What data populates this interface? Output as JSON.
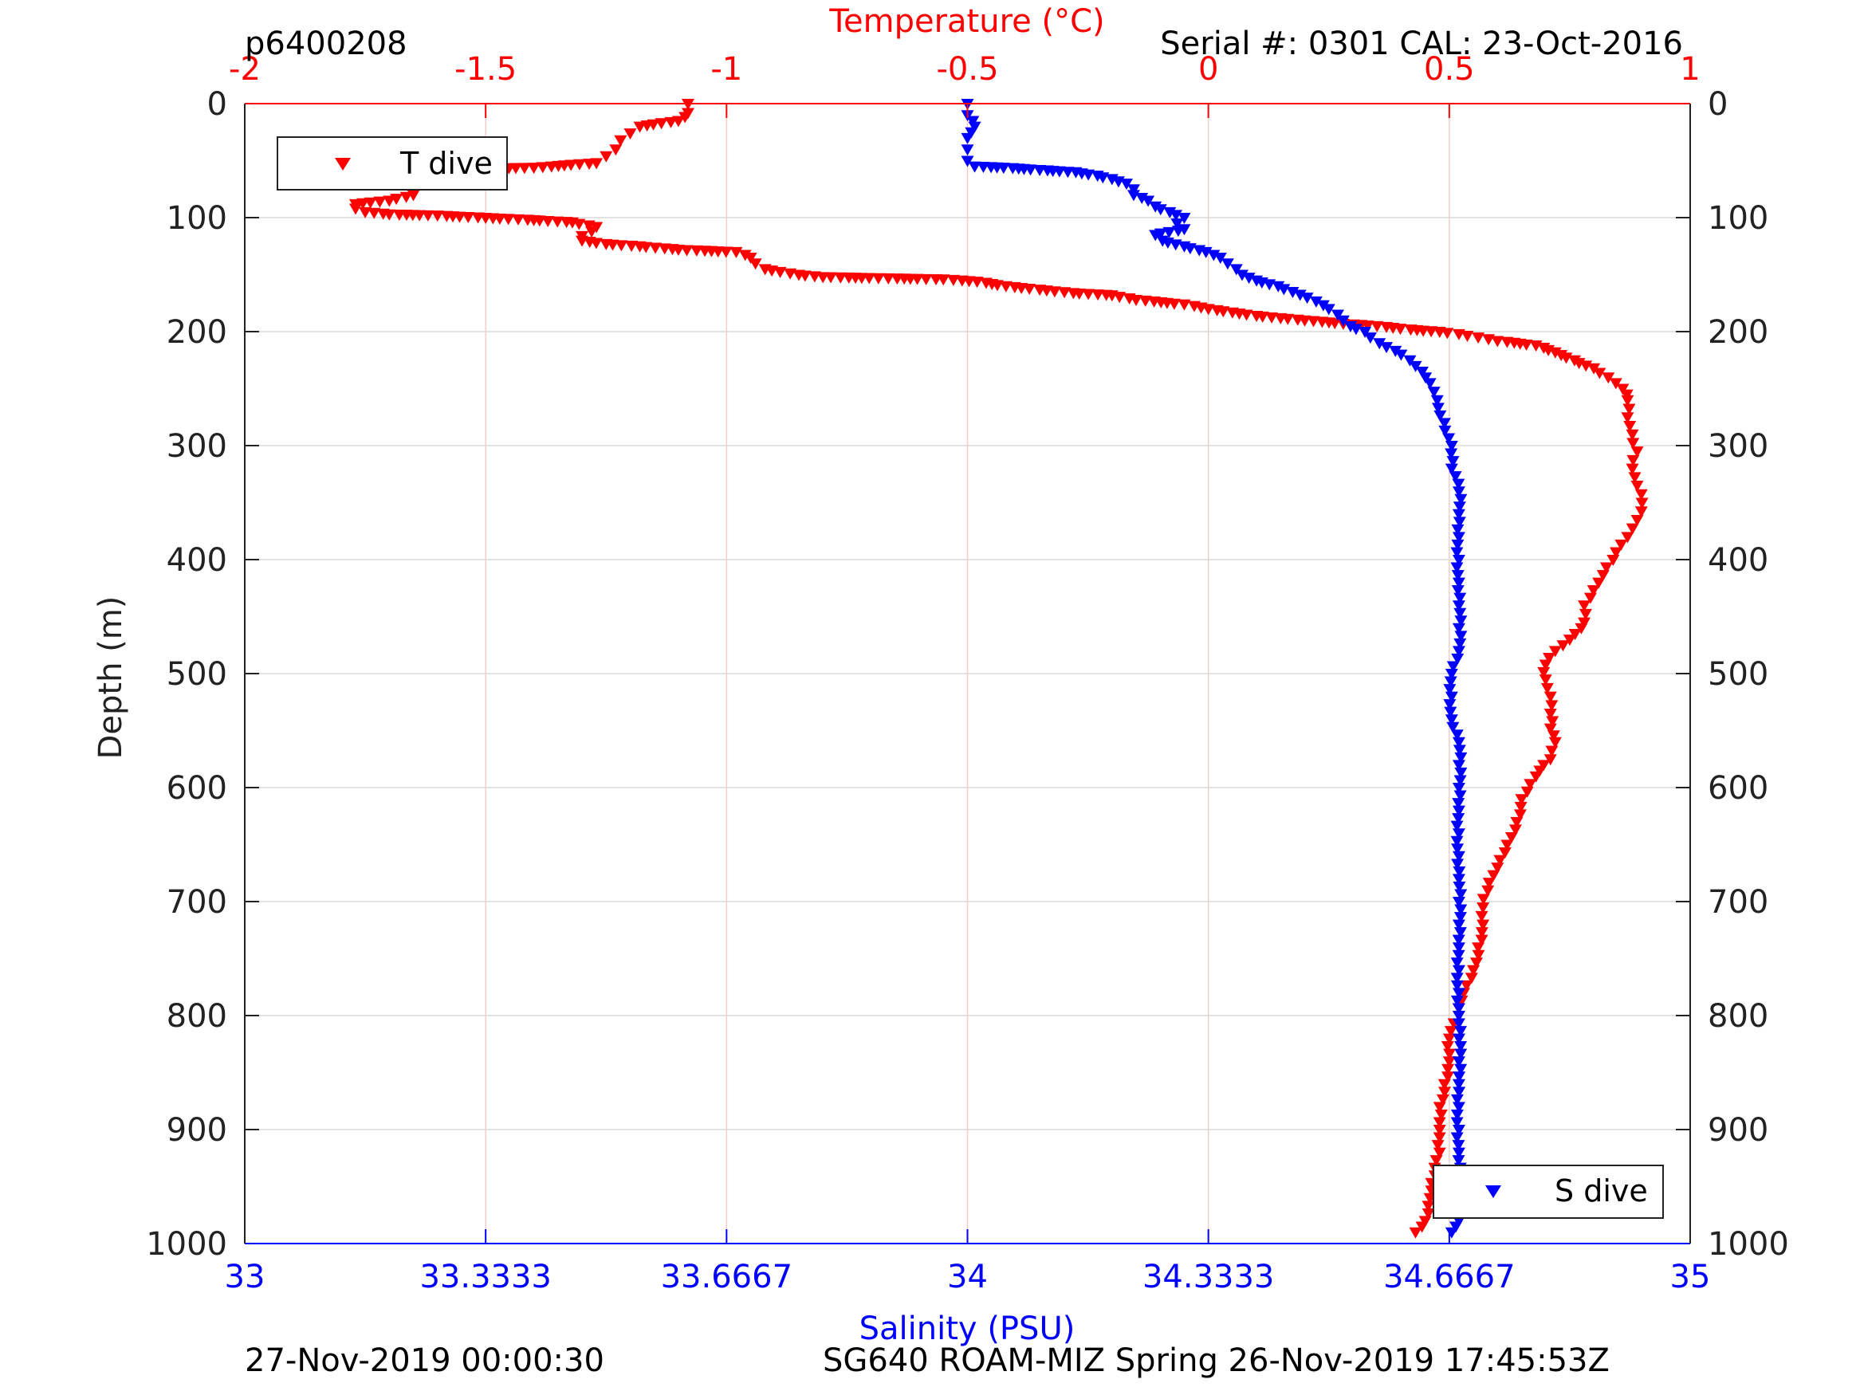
{
  "page": {
    "top_left_id": "p6400208",
    "top_right_info": "Serial #: 0301  CAL: 23-Oct-2016",
    "bottom_left_timestamp": "27-Nov-2019 00:00:30",
    "bottom_right_mission": "SG640 ROAM-MIZ Spring 26-Nov-2019 17:45:53Z"
  },
  "colors": {
    "temperature": "#ff0000",
    "salinity": "#0000ff",
    "axis": "#000000"
  },
  "chart_data": {
    "type": "scatter",
    "ylabel": "Depth (m)",
    "y_axis_reversed": true,
    "ylim": [
      0,
      1000
    ],
    "y_ticks": [
      "0",
      "100",
      "200",
      "300",
      "400",
      "500",
      "600",
      "700",
      "800",
      "900",
      "1000"
    ],
    "grid": true,
    "x_top": {
      "label": "Temperature (°C)",
      "xlim": [
        -2,
        1
      ],
      "ticks": [
        "-2",
        "-1.5",
        "-1",
        "-0.5",
        "0",
        "0.5",
        "1"
      ]
    },
    "x_bottom": {
      "label": "Salinity (PSU)",
      "xlim": [
        33,
        35
      ],
      "ticks": [
        "33",
        "33.3333",
        "33.6667",
        "34",
        "34.3333",
        "34.6667",
        "35"
      ]
    },
    "series": [
      {
        "name": "T dive",
        "axis": "top",
        "marker": "triangle-down",
        "color": "#ff0000",
        "legend_position": "top-left",
        "points": [
          [
            -1.08,
            0
          ],
          [
            -1.08,
            8
          ],
          [
            -1.1,
            15
          ],
          [
            -1.18,
            20
          ],
          [
            -1.2,
            26
          ],
          [
            -1.22,
            32
          ],
          [
            -1.23,
            40
          ],
          [
            -1.25,
            46
          ],
          [
            -1.27,
            52
          ],
          [
            -1.4,
            56
          ],
          [
            -1.6,
            58
          ],
          [
            -1.65,
            62
          ],
          [
            -1.65,
            68
          ],
          [
            -1.65,
            75
          ],
          [
            -1.65,
            80
          ],
          [
            -1.7,
            85
          ],
          [
            -1.77,
            88
          ],
          [
            -1.77,
            92
          ],
          [
            -1.75,
            95
          ],
          [
            -1.7,
            97
          ],
          [
            -1.6,
            98
          ],
          [
            -1.5,
            100
          ],
          [
            -1.4,
            102
          ],
          [
            -1.32,
            104
          ],
          [
            -1.27,
            108
          ],
          [
            -1.28,
            112
          ],
          [
            -1.3,
            116
          ],
          [
            -1.3,
            120
          ],
          [
            -1.25,
            123
          ],
          [
            -1.18,
            125
          ],
          [
            -1.1,
            128
          ],
          [
            -0.98,
            130
          ],
          [
            -0.95,
            135
          ],
          [
            -0.94,
            140
          ],
          [
            -0.92,
            145
          ],
          [
            -0.85,
            150
          ],
          [
            -0.8,
            152
          ],
          [
            -0.55,
            154
          ],
          [
            -0.48,
            156
          ],
          [
            -0.42,
            160
          ],
          [
            -0.35,
            163
          ],
          [
            -0.28,
            166
          ],
          [
            -0.2,
            168
          ],
          [
            -0.15,
            172
          ],
          [
            -0.05,
            176
          ],
          [
            0.0,
            180
          ],
          [
            0.05,
            183
          ],
          [
            0.1,
            186
          ],
          [
            0.15,
            188
          ],
          [
            0.2,
            190
          ],
          [
            0.28,
            193
          ],
          [
            0.35,
            195
          ],
          [
            0.42,
            198
          ],
          [
            0.48,
            200
          ],
          [
            0.52,
            202
          ],
          [
            0.56,
            205
          ],
          [
            0.6,
            208
          ],
          [
            0.68,
            212
          ],
          [
            0.72,
            218
          ],
          [
            0.76,
            225
          ],
          [
            0.8,
            232
          ],
          [
            0.83,
            240
          ],
          [
            0.86,
            250
          ],
          [
            0.87,
            260
          ],
          [
            0.87,
            275
          ],
          [
            0.88,
            290
          ],
          [
            0.89,
            305
          ],
          [
            0.88,
            320
          ],
          [
            0.89,
            335
          ],
          [
            0.9,
            350
          ],
          [
            0.89,
            365
          ],
          [
            0.87,
            380
          ],
          [
            0.84,
            400
          ],
          [
            0.81,
            420
          ],
          [
            0.78,
            440
          ],
          [
            0.78,
            455
          ],
          [
            0.75,
            470
          ],
          [
            0.72,
            480
          ],
          [
            0.7,
            492
          ],
          [
            0.7,
            505
          ],
          [
            0.71,
            520
          ],
          [
            0.71,
            535
          ],
          [
            0.71,
            548
          ],
          [
            0.72,
            560
          ],
          [
            0.71,
            575
          ],
          [
            0.68,
            590
          ],
          [
            0.65,
            610
          ],
          [
            0.64,
            630
          ],
          [
            0.62,
            650
          ],
          [
            0.6,
            670
          ],
          [
            0.58,
            690
          ],
          [
            0.57,
            705
          ],
          [
            0.57,
            720
          ],
          [
            0.56,
            740
          ],
          [
            0.55,
            760
          ],
          [
            0.53,
            780
          ],
          [
            0.52,
            800
          ],
          [
            0.5,
            820
          ],
          [
            0.5,
            840
          ],
          [
            0.49,
            860
          ],
          [
            0.48,
            880
          ],
          [
            0.48,
            900
          ],
          [
            0.48,
            920
          ],
          [
            0.47,
            940
          ],
          [
            0.46,
            960
          ],
          [
            0.45,
            980
          ],
          [
            0.43,
            990
          ]
        ]
      },
      {
        "name": "S dive",
        "axis": "bottom",
        "marker": "triangle-down",
        "color": "#0000ff",
        "legend_position": "bottom-right",
        "points": [
          [
            34.0,
            0
          ],
          [
            34.0,
            10
          ],
          [
            34.01,
            20
          ],
          [
            34.0,
            30
          ],
          [
            34.0,
            40
          ],
          [
            34.0,
            50
          ],
          [
            34.01,
            55
          ],
          [
            34.05,
            56
          ],
          [
            34.1,
            58
          ],
          [
            34.15,
            60
          ],
          [
            34.18,
            63
          ],
          [
            34.2,
            66
          ],
          [
            34.22,
            70
          ],
          [
            34.23,
            75
          ],
          [
            34.23,
            80
          ],
          [
            34.25,
            85
          ],
          [
            34.26,
            90
          ],
          [
            34.28,
            95
          ],
          [
            34.3,
            100
          ],
          [
            34.29,
            105
          ],
          [
            34.3,
            110
          ],
          [
            34.26,
            115
          ],
          [
            34.27,
            120
          ],
          [
            34.3,
            125
          ],
          [
            34.33,
            130
          ],
          [
            34.35,
            135
          ],
          [
            34.36,
            140
          ],
          [
            34.38,
            150
          ],
          [
            34.4,
            155
          ],
          [
            34.43,
            160
          ],
          [
            34.45,
            165
          ],
          [
            34.47,
            170
          ],
          [
            34.5,
            180
          ],
          [
            34.52,
            190
          ],
          [
            34.53,
            195
          ],
          [
            34.55,
            200
          ],
          [
            34.57,
            210
          ],
          [
            34.6,
            220
          ],
          [
            34.62,
            230
          ],
          [
            34.64,
            245
          ],
          [
            34.65,
            260
          ],
          [
            34.66,
            280
          ],
          [
            34.67,
            300
          ],
          [
            34.67,
            320
          ],
          [
            34.68,
            340
          ],
          [
            34.68,
            360
          ],
          [
            34.68,
            380
          ],
          [
            34.68,
            400
          ],
          [
            34.68,
            420
          ],
          [
            34.68,
            440
          ],
          [
            34.68,
            460
          ],
          [
            34.68,
            480
          ],
          [
            34.67,
            500
          ],
          [
            34.67,
            520
          ],
          [
            34.67,
            540
          ],
          [
            34.68,
            560
          ],
          [
            34.68,
            580
          ],
          [
            34.68,
            600
          ],
          [
            34.68,
            620
          ],
          [
            34.68,
            640
          ],
          [
            34.68,
            660
          ],
          [
            34.68,
            680
          ],
          [
            34.68,
            700
          ],
          [
            34.68,
            720
          ],
          [
            34.68,
            740
          ],
          [
            34.68,
            760
          ],
          [
            34.68,
            780
          ],
          [
            34.68,
            800
          ],
          [
            34.68,
            820
          ],
          [
            34.68,
            840
          ],
          [
            34.68,
            860
          ],
          [
            34.68,
            880
          ],
          [
            34.68,
            900
          ],
          [
            34.68,
            920
          ],
          [
            34.68,
            940
          ],
          [
            34.68,
            960
          ],
          [
            34.68,
            980
          ],
          [
            34.67,
            990
          ]
        ]
      }
    ]
  }
}
